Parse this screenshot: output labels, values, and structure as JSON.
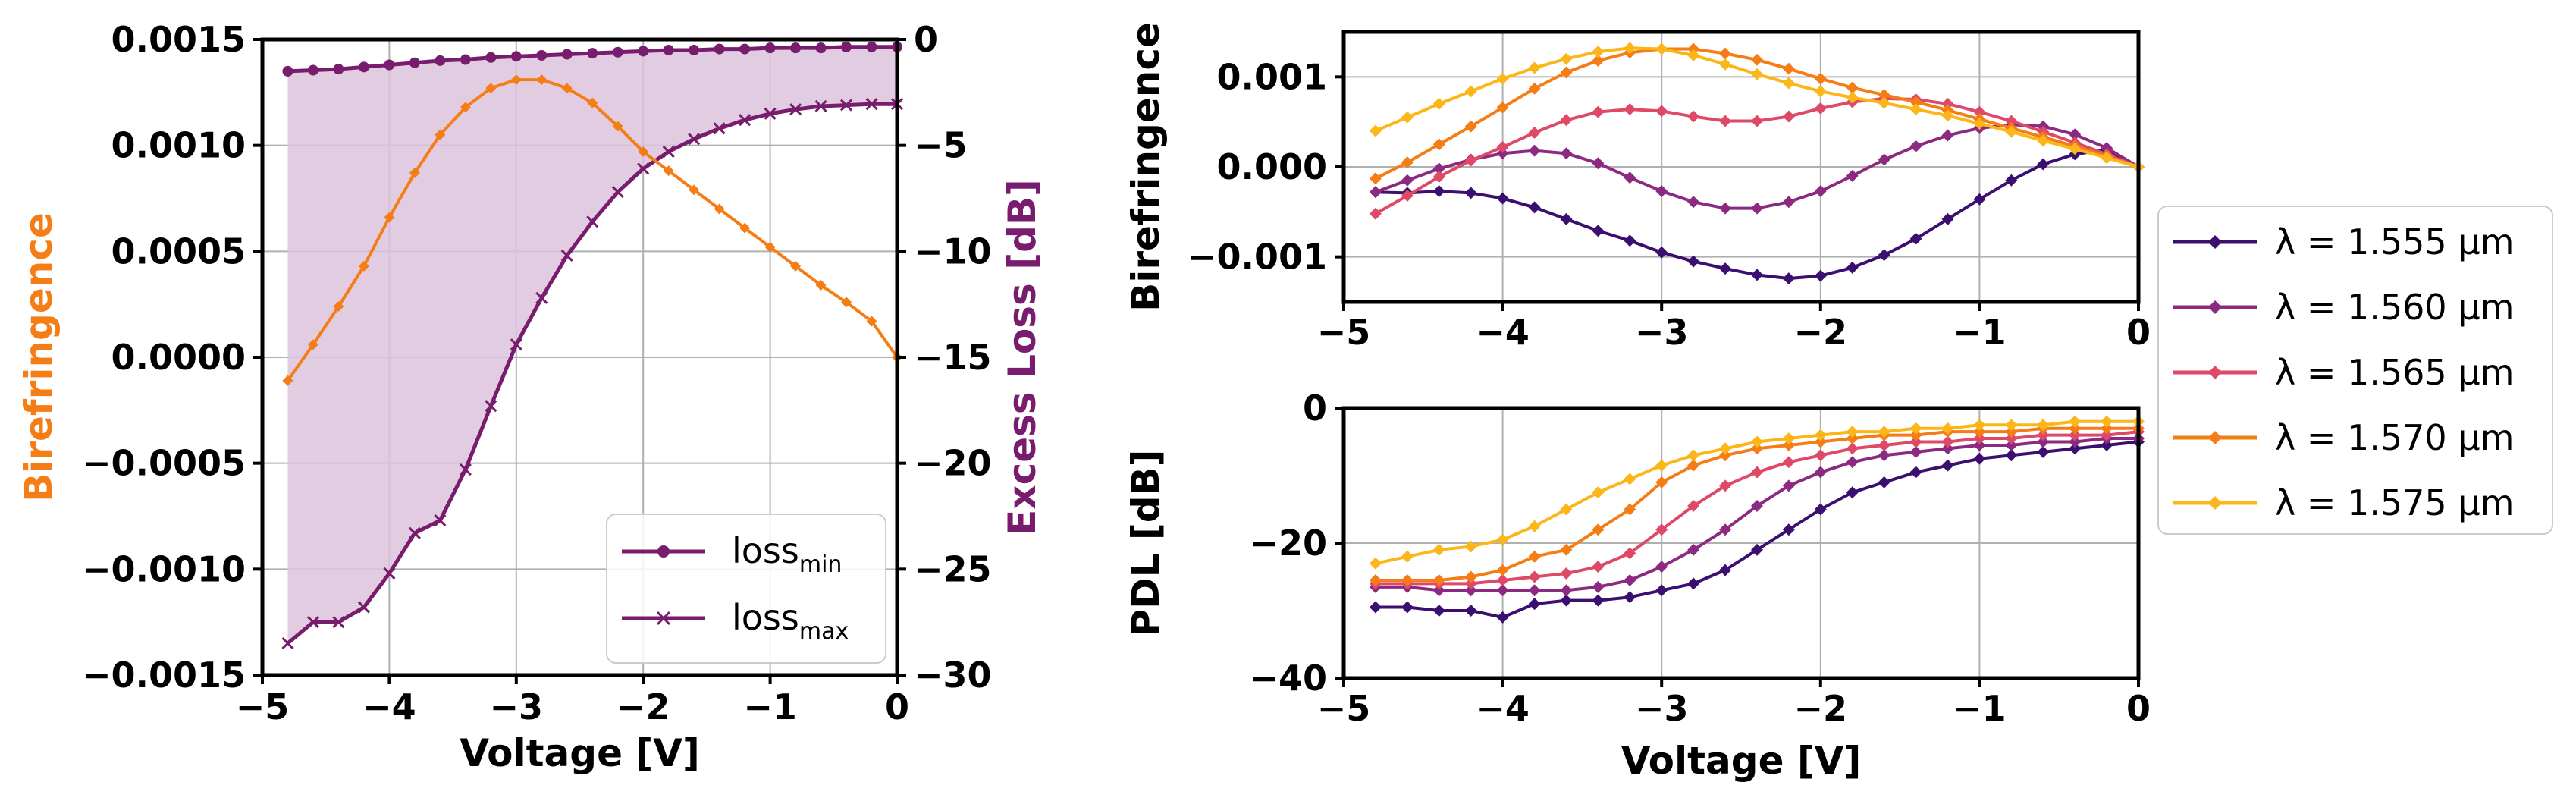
{
  "chart_data": [
    {
      "type": "line",
      "panel": "left",
      "xlabel": "Voltage [V]",
      "ylabel_left": "Birefringence",
      "ylabel_right": "Excess Loss [dB]",
      "xlim": [
        -5,
        0
      ],
      "ylim_left": [
        -0.0015,
        0.0015
      ],
      "ylim_right": [
        -30,
        0
      ],
      "grid": true,
      "xticks": [
        -5,
        -4,
        -3,
        -2,
        -1,
        0
      ],
      "xtick_labels": [
        "−5",
        "−4",
        "−3",
        "−2",
        "−1",
        "0"
      ],
      "yticks_left": [
        -0.0015,
        -0.001,
        -0.0005,
        0,
        0.0005,
        0.001,
        0.0015
      ],
      "ytick_labels_left": [
        "−0.0015",
        "−0.0010",
        "−0.0005",
        "0.0000",
        "0.0005",
        "0.0010",
        "0.0015"
      ],
      "yticks_right": [
        -30,
        -25,
        -20,
        -15,
        -10,
        -5,
        0
      ],
      "ytick_labels_right": [
        "−30",
        "−25",
        "−20",
        "−15",
        "−10",
        "−5",
        "0"
      ],
      "colors": {
        "birefringence": "#f57d15",
        "loss": "#781c6d",
        "fill": "#dcc3dc",
        "left_label": "#f57d15",
        "right_label": "#781c6d"
      },
      "birefringence": {
        "x": [
          -4.8,
          -4.6,
          -4.4,
          -4.2,
          -4.0,
          -3.8,
          -3.6,
          -3.4,
          -3.2,
          -3.0,
          -2.8,
          -2.6,
          -2.4,
          -2.2,
          -2.0,
          -1.8,
          -1.6,
          -1.4,
          -1.2,
          -1.0,
          -0.8,
          -0.6,
          -0.4,
          -0.2,
          0.0
        ],
        "y": [
          -0.00011,
          6e-05,
          0.00024,
          0.00043,
          0.00066,
          0.00087,
          0.00105,
          0.00118,
          0.00127,
          0.00131,
          0.00131,
          0.00127,
          0.0012,
          0.00109,
          0.00097,
          0.00088,
          0.00079,
          0.0007,
          0.00061,
          0.00052,
          0.00043,
          0.00034,
          0.00026,
          0.00017,
          0.0
        ]
      },
      "legend": {
        "location": "lower right",
        "entries": [
          {
            "main": "loss",
            "sub": "min",
            "marker": "circle"
          },
          {
            "main": "loss",
            "sub": "max",
            "marker": "x"
          }
        ]
      },
      "loss_min": {
        "x": [
          -4.8,
          -4.6,
          -4.4,
          -4.2,
          -4.0,
          -3.8,
          -3.6,
          -3.4,
          -3.2,
          -3.0,
          -2.8,
          -2.6,
          -2.4,
          -2.2,
          -2.0,
          -1.8,
          -1.6,
          -1.4,
          -1.2,
          -1.0,
          -0.8,
          -0.6,
          -0.4,
          -0.2,
          0.0
        ],
        "y": [
          -1.5,
          -1.45,
          -1.4,
          -1.3,
          -1.2,
          -1.1,
          -1.0,
          -0.95,
          -0.85,
          -0.8,
          -0.75,
          -0.7,
          -0.65,
          -0.6,
          -0.55,
          -0.5,
          -0.5,
          -0.45,
          -0.45,
          -0.4,
          -0.4,
          -0.4,
          -0.35,
          -0.35,
          -0.35
        ]
      },
      "loss_max": {
        "x": [
          -4.8,
          -4.6,
          -4.4,
          -4.2,
          -4.0,
          -3.8,
          -3.6,
          -3.4,
          -3.2,
          -3.0,
          -2.8,
          -2.6,
          -2.4,
          -2.2,
          -2.0,
          -1.8,
          -1.6,
          -1.4,
          -1.2,
          -1.0,
          -0.8,
          -0.6,
          -0.4,
          -0.2,
          0.0
        ],
        "y": [
          -28.5,
          -27.5,
          -27.5,
          -26.8,
          -25.2,
          -23.3,
          -22.7,
          -20.3,
          -17.3,
          -14.4,
          -12.2,
          -10.2,
          -8.6,
          -7.2,
          -6.1,
          -5.3,
          -4.7,
          -4.2,
          -3.8,
          -3.5,
          -3.3,
          -3.15,
          -3.1,
          -3.05,
          -3.05
        ]
      }
    },
    {
      "type": "line",
      "panel": "top-right",
      "xlabel": "",
      "ylabel": "Birefringence",
      "xlim": [
        -5,
        0
      ],
      "ylim": [
        -0.0015,
        0.0015
      ],
      "grid": true,
      "xticks": [
        -5,
        -4,
        -3,
        -2,
        -1,
        0
      ],
      "xtick_labels": [
        "−5",
        "−4",
        "−3",
        "−2",
        "−1",
        "0"
      ],
      "yticks": [
        -0.001,
        0,
        0.001
      ],
      "ytick_labels": [
        "−0.001",
        "0.000",
        "0.001"
      ],
      "series": [
        {
          "name": "1.555",
          "color": "#3b0f70",
          "x": [
            -4.8,
            -4.6,
            -4.4,
            -4.2,
            -4.0,
            -3.8,
            -3.6,
            -3.4,
            -3.2,
            -3.0,
            -2.8,
            -2.6,
            -2.4,
            -2.2,
            -2.0,
            -1.8,
            -1.6,
            -1.4,
            -1.2,
            -1.0,
            -0.8,
            -0.6,
            -0.4,
            -0.2,
            0.0
          ],
          "y": [
            -0.00028,
            -0.00029,
            -0.00027,
            -0.00029,
            -0.00035,
            -0.00045,
            -0.00058,
            -0.00071,
            -0.00082,
            -0.00095,
            -0.00105,
            -0.00113,
            -0.0012,
            -0.00124,
            -0.00121,
            -0.00112,
            -0.00098,
            -0.0008,
            -0.00058,
            -0.00036,
            -0.00015,
            3e-05,
            0.00014,
            0.00019,
            0.0
          ]
        },
        {
          "name": "1.560",
          "color": "#8c2981",
          "x": [
            -4.8,
            -4.6,
            -4.4,
            -4.2,
            -4.0,
            -3.8,
            -3.6,
            -3.4,
            -3.2,
            -3.0,
            -2.8,
            -2.6,
            -2.4,
            -2.2,
            -2.0,
            -1.8,
            -1.6,
            -1.4,
            -1.2,
            -1.0,
            -0.8,
            -0.6,
            -0.4,
            -0.2,
            0.0
          ],
          "y": [
            -0.00028,
            -0.00015,
            -2e-05,
            8e-05,
            0.00015,
            0.00018,
            0.00015,
            4e-05,
            -0.00012,
            -0.00027,
            -0.00039,
            -0.00046,
            -0.00046,
            -0.00039,
            -0.00027,
            -0.0001,
            8e-05,
            0.00023,
            0.00035,
            0.00043,
            0.00047,
            0.00045,
            0.00036,
            0.00021,
            0.0
          ]
        },
        {
          "name": "1.565",
          "color": "#de4968",
          "x": [
            -4.8,
            -4.6,
            -4.4,
            -4.2,
            -4.0,
            -3.8,
            -3.6,
            -3.4,
            -3.2,
            -3.0,
            -2.8,
            -2.6,
            -2.4,
            -2.2,
            -2.0,
            -1.8,
            -1.6,
            -1.4,
            -1.2,
            -1.0,
            -0.8,
            -0.6,
            -0.4,
            -0.2,
            0.0
          ],
          "y": [
            -0.00052,
            -0.00032,
            -0.00011,
            7e-05,
            0.00022,
            0.00038,
            0.00052,
            0.00061,
            0.00064,
            0.00062,
            0.00056,
            0.00051,
            0.00051,
            0.00056,
            0.00065,
            0.00072,
            0.00076,
            0.00075,
            0.0007,
            0.00061,
            0.00051,
            0.00039,
            0.00027,
            0.00014,
            0.0
          ]
        },
        {
          "name": "1.570",
          "color": "#f57d15",
          "x": [
            -4.8,
            -4.6,
            -4.4,
            -4.2,
            -4.0,
            -3.8,
            -3.6,
            -3.4,
            -3.2,
            -3.0,
            -2.8,
            -2.6,
            -2.4,
            -2.2,
            -2.0,
            -1.8,
            -1.6,
            -1.4,
            -1.2,
            -1.0,
            -0.8,
            -0.6,
            -0.4,
            -0.2,
            0.0
          ],
          "y": [
            -0.00013,
            5e-05,
            0.00025,
            0.00045,
            0.00066,
            0.00087,
            0.00105,
            0.00118,
            0.00127,
            0.00131,
            0.00131,
            0.00126,
            0.00119,
            0.00109,
            0.00098,
            0.00088,
            0.0008,
            0.00072,
            0.00063,
            0.00053,
            0.00043,
            0.00033,
            0.00023,
            0.00012,
            0.0
          ]
        },
        {
          "name": "1.575",
          "color": "#fbb61a",
          "x": [
            -4.8,
            -4.6,
            -4.4,
            -4.2,
            -4.0,
            -3.8,
            -3.6,
            -3.4,
            -3.2,
            -3.0,
            -2.8,
            -2.6,
            -2.4,
            -2.2,
            -2.0,
            -1.8,
            -1.6,
            -1.4,
            -1.2,
            -1.0,
            -0.8,
            -0.6,
            -0.4,
            -0.2,
            0.0
          ],
          "y": [
            0.0004,
            0.00055,
            0.0007,
            0.00084,
            0.00098,
            0.0011,
            0.0012,
            0.00128,
            0.00132,
            0.00131,
            0.00124,
            0.00114,
            0.00103,
            0.00093,
            0.00084,
            0.00077,
            0.00071,
            0.00064,
            0.00057,
            0.00048,
            0.00039,
            0.00029,
            0.0002,
            0.0001,
            0.0
          ]
        }
      ]
    },
    {
      "type": "line",
      "panel": "bottom-right",
      "xlabel": "Voltage [V]",
      "ylabel": "PDL [dB]",
      "xlim": [
        -5,
        0
      ],
      "ylim": [
        -40,
        0
      ],
      "grid": true,
      "xticks": [
        -5,
        -4,
        -3,
        -2,
        -1,
        0
      ],
      "xtick_labels": [
        "−5",
        "−4",
        "−3",
        "−2",
        "−1",
        "0"
      ],
      "yticks": [
        -40,
        -20,
        0
      ],
      "ytick_labels": [
        "−40",
        "−20",
        "0"
      ],
      "series": [
        {
          "name": "1.555",
          "color": "#3b0f70",
          "x": [
            -4.8,
            -4.6,
            -4.4,
            -4.2,
            -4.0,
            -3.8,
            -3.6,
            -3.4,
            -3.2,
            -3.0,
            -2.8,
            -2.6,
            -2.4,
            -2.2,
            -2.0,
            -1.8,
            -1.6,
            -1.4,
            -1.2,
            -1.0,
            -0.8,
            -0.6,
            -0.4,
            -0.2,
            0.0
          ],
          "y": [
            -29.5,
            -29.5,
            -30,
            -30,
            -31,
            -29,
            -28.5,
            -28.5,
            -28,
            -27,
            -26,
            -24,
            -21,
            -18,
            -15,
            -12.5,
            -11,
            -9.5,
            -8.5,
            -7.5,
            -7,
            -6.5,
            -6,
            -5.5,
            -5
          ]
        },
        {
          "name": "1.560",
          "color": "#8c2981",
          "x": [
            -4.8,
            -4.6,
            -4.4,
            -4.2,
            -4.0,
            -3.8,
            -3.6,
            -3.4,
            -3.2,
            -3.0,
            -2.8,
            -2.6,
            -2.4,
            -2.2,
            -2.0,
            -1.8,
            -1.6,
            -1.4,
            -1.2,
            -1.0,
            -0.8,
            -0.6,
            -0.4,
            -0.2,
            0.0
          ],
          "y": [
            -26.5,
            -26.5,
            -27,
            -27,
            -27,
            -27,
            -27,
            -26.5,
            -25.5,
            -23.5,
            -21,
            -18,
            -14.5,
            -11.5,
            -9.5,
            -8,
            -7,
            -6.5,
            -6,
            -5.5,
            -5.5,
            -5,
            -5,
            -4.5,
            -4.5
          ]
        },
        {
          "name": "1.565",
          "color": "#de4968",
          "x": [
            -4.8,
            -4.6,
            -4.4,
            -4.2,
            -4.0,
            -3.8,
            -3.6,
            -3.4,
            -3.2,
            -3.0,
            -2.8,
            -2.6,
            -2.4,
            -2.2,
            -2.0,
            -1.8,
            -1.6,
            -1.4,
            -1.2,
            -1.0,
            -0.8,
            -0.6,
            -0.4,
            -0.2,
            0.0
          ],
          "y": [
            -26,
            -26,
            -26,
            -26,
            -25.5,
            -25,
            -24.5,
            -23.5,
            -21.5,
            -18,
            -14.5,
            -11.5,
            -9.5,
            -8,
            -7,
            -6,
            -5.5,
            -5,
            -5,
            -4.5,
            -4.5,
            -4,
            -4,
            -4,
            -3.5
          ]
        },
        {
          "name": "1.570",
          "color": "#f57d15",
          "x": [
            -4.8,
            -4.6,
            -4.4,
            -4.2,
            -4.0,
            -3.8,
            -3.6,
            -3.4,
            -3.2,
            -3.0,
            -2.8,
            -2.6,
            -2.4,
            -2.2,
            -2.0,
            -1.8,
            -1.6,
            -1.4,
            -1.2,
            -1.0,
            -0.8,
            -0.6,
            -0.4,
            -0.2,
            0.0
          ],
          "y": [
            -25.5,
            -25.5,
            -25.5,
            -25,
            -24,
            -22,
            -21,
            -18,
            -15,
            -11,
            -8.5,
            -7,
            -6,
            -5.5,
            -5,
            -4.5,
            -4,
            -4,
            -3.5,
            -3.5,
            -3.5,
            -3,
            -3,
            -3,
            -3
          ]
        },
        {
          "name": "1.575",
          "color": "#fbb61a",
          "x": [
            -4.8,
            -4.6,
            -4.4,
            -4.2,
            -4.0,
            -3.8,
            -3.6,
            -3.4,
            -3.2,
            -3.0,
            -2.8,
            -2.6,
            -2.4,
            -2.2,
            -2.0,
            -1.8,
            -1.6,
            -1.4,
            -1.2,
            -1.0,
            -0.8,
            -0.6,
            -0.4,
            -0.2,
            0.0
          ],
          "y": [
            -23,
            -22,
            -21,
            -20.5,
            -19.5,
            -17.5,
            -15,
            -12.5,
            -10.5,
            -8.5,
            -7,
            -6,
            -5,
            -4.5,
            -4,
            -3.5,
            -3.5,
            -3,
            -3,
            -2.5,
            -2.5,
            -2.5,
            -2,
            -2,
            -2
          ]
        }
      ],
      "legend": {
        "location": "center-right",
        "prefix": "λ =",
        "unit": "µm"
      }
    }
  ]
}
